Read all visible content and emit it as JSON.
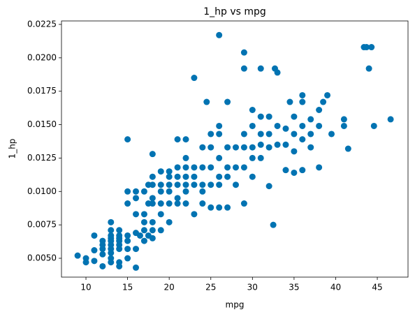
{
  "chart_data": {
    "type": "scatter",
    "title": "1_hp vs mpg",
    "x_label": "mpg",
    "y_label": "1_hp",
    "color": "#0173b2",
    "x": [
      9,
      10,
      10,
      11,
      11,
      11,
      12,
      12,
      12,
      12,
      12,
      13,
      13,
      13,
      13,
      13,
      13,
      13,
      13,
      13,
      13,
      14,
      14,
      14,
      14,
      14,
      14,
      14,
      14,
      15,
      15,
      15,
      15,
      15,
      15,
      15,
      16,
      16,
      16,
      16,
      16,
      16,
      16.5,
      17,
      17,
      17,
      17,
      17,
      17.5,
      17.5,
      17.5,
      18,
      18,
      18,
      18,
      18,
      18,
      18,
      18,
      19,
      19,
      19,
      19,
      19,
      19,
      20,
      20,
      20,
      20,
      20,
      20,
      21,
      21,
      21,
      21,
      21,
      21,
      22,
      22,
      22,
      22,
      22,
      22,
      22,
      23,
      23,
      23,
      23,
      23,
      24,
      24,
      24,
      24,
      24,
      24.5,
      25,
      25,
      25,
      25,
      25,
      26,
      26,
      26,
      26,
      26,
      26,
      26,
      27,
      27,
      27,
      27,
      27,
      28,
      28,
      28,
      29,
      29,
      29,
      29,
      29,
      29,
      30,
      30,
      30,
      30,
      30,
      31,
      31,
      31,
      31,
      31,
      32,
      32,
      32,
      32,
      32.5,
      32.7,
      33,
      33,
      33,
      34,
      34,
      34,
      34.5,
      35,
      35,
      35,
      35,
      36,
      36,
      36,
      36,
      36,
      37,
      37,
      37,
      38,
      38,
      38,
      38.5,
      39,
      39.5,
      41,
      41,
      41.5,
      43.4,
      43.7,
      44,
      44.3,
      44.6,
      46.6
    ],
    "values": [
      0.0052,
      0.005,
      0.0047,
      0.0067,
      0.0056,
      0.0048,
      0.0063,
      0.006,
      0.0057,
      0.0053,
      0.0044,
      0.0077,
      0.0071,
      0.0067,
      0.0065,
      0.0063,
      0.006,
      0.0057,
      0.0054,
      0.005,
      0.0047,
      0.0071,
      0.0067,
      0.0065,
      0.0063,
      0.006,
      0.0057,
      0.0047,
      0.0044,
      0.0139,
      0.01,
      0.0091,
      0.0067,
      0.0063,
      0.0057,
      0.005,
      0.01,
      0.0095,
      0.0083,
      0.0069,
      0.0057,
      0.0043,
      0.0067,
      0.01,
      0.0083,
      0.0077,
      0.0071,
      0.0063,
      0.0105,
      0.0091,
      0.0067,
      0.0128,
      0.0111,
      0.0105,
      0.0095,
      0.0091,
      0.0077,
      0.0071,
      0.0065,
      0.0115,
      0.0105,
      0.01,
      0.0091,
      0.0083,
      0.0071,
      0.0115,
      0.0111,
      0.0105,
      0.01,
      0.0091,
      0.0077,
      0.0139,
      0.0118,
      0.0111,
      0.0105,
      0.0095,
      0.0091,
      0.0139,
      0.0125,
      0.0118,
      0.0111,
      0.0105,
      0.01,
      0.0091,
      0.0185,
      0.0118,
      0.0111,
      0.0105,
      0.0083,
      0.0133,
      0.0118,
      0.0105,
      0.01,
      0.0091,
      0.0167,
      0.0143,
      0.0133,
      0.0118,
      0.0105,
      0.0088,
      0.0217,
      0.0149,
      0.0143,
      0.0125,
      0.0111,
      0.0105,
      0.0088,
      0.0167,
      0.0133,
      0.0118,
      0.0111,
      0.0088,
      0.0133,
      0.0118,
      0.0105,
      0.0204,
      0.0192,
      0.0143,
      0.0133,
      0.0118,
      0.0091,
      0.0161,
      0.0149,
      0.0133,
      0.0125,
      0.0111,
      0.0192,
      0.0156,
      0.0143,
      0.0135,
      0.0125,
      0.0156,
      0.0143,
      0.0133,
      0.0104,
      0.0075,
      0.0192,
      0.0189,
      0.0149,
      0.0135,
      0.0147,
      0.0135,
      0.0116,
      0.0167,
      0.0156,
      0.0143,
      0.013,
      0.0114,
      0.0172,
      0.0167,
      0.0149,
      0.0139,
      0.0116,
      0.0154,
      0.0143,
      0.0133,
      0.0161,
      0.0149,
      0.0118,
      0.0167,
      0.0172,
      0.0143,
      0.0154,
      0.0149,
      0.0132,
      0.0208,
      0.0208,
      0.0192,
      0.0208,
      0.0149,
      0.0154
    ],
    "xlim": [
      7.06,
      48.69
    ],
    "xticks": [
      10,
      15,
      20,
      25,
      30,
      35,
      40,
      45
    ],
    "ylim": [
      0.00359,
      0.02276
    ],
    "yticks": [
      {
        "value": 0.005,
        "label": "0.0050"
      },
      {
        "value": 0.0075,
        "label": "0.0075"
      },
      {
        "value": 0.01,
        "label": "0.0100"
      },
      {
        "value": 0.0125,
        "label": "0.0125"
      },
      {
        "value": 0.015,
        "label": "0.0150"
      },
      {
        "value": 0.0175,
        "label": "0.0175"
      },
      {
        "value": 0.02,
        "label": "0.0200"
      },
      {
        "value": 0.0225,
        "label": "0.0225"
      }
    ]
  }
}
